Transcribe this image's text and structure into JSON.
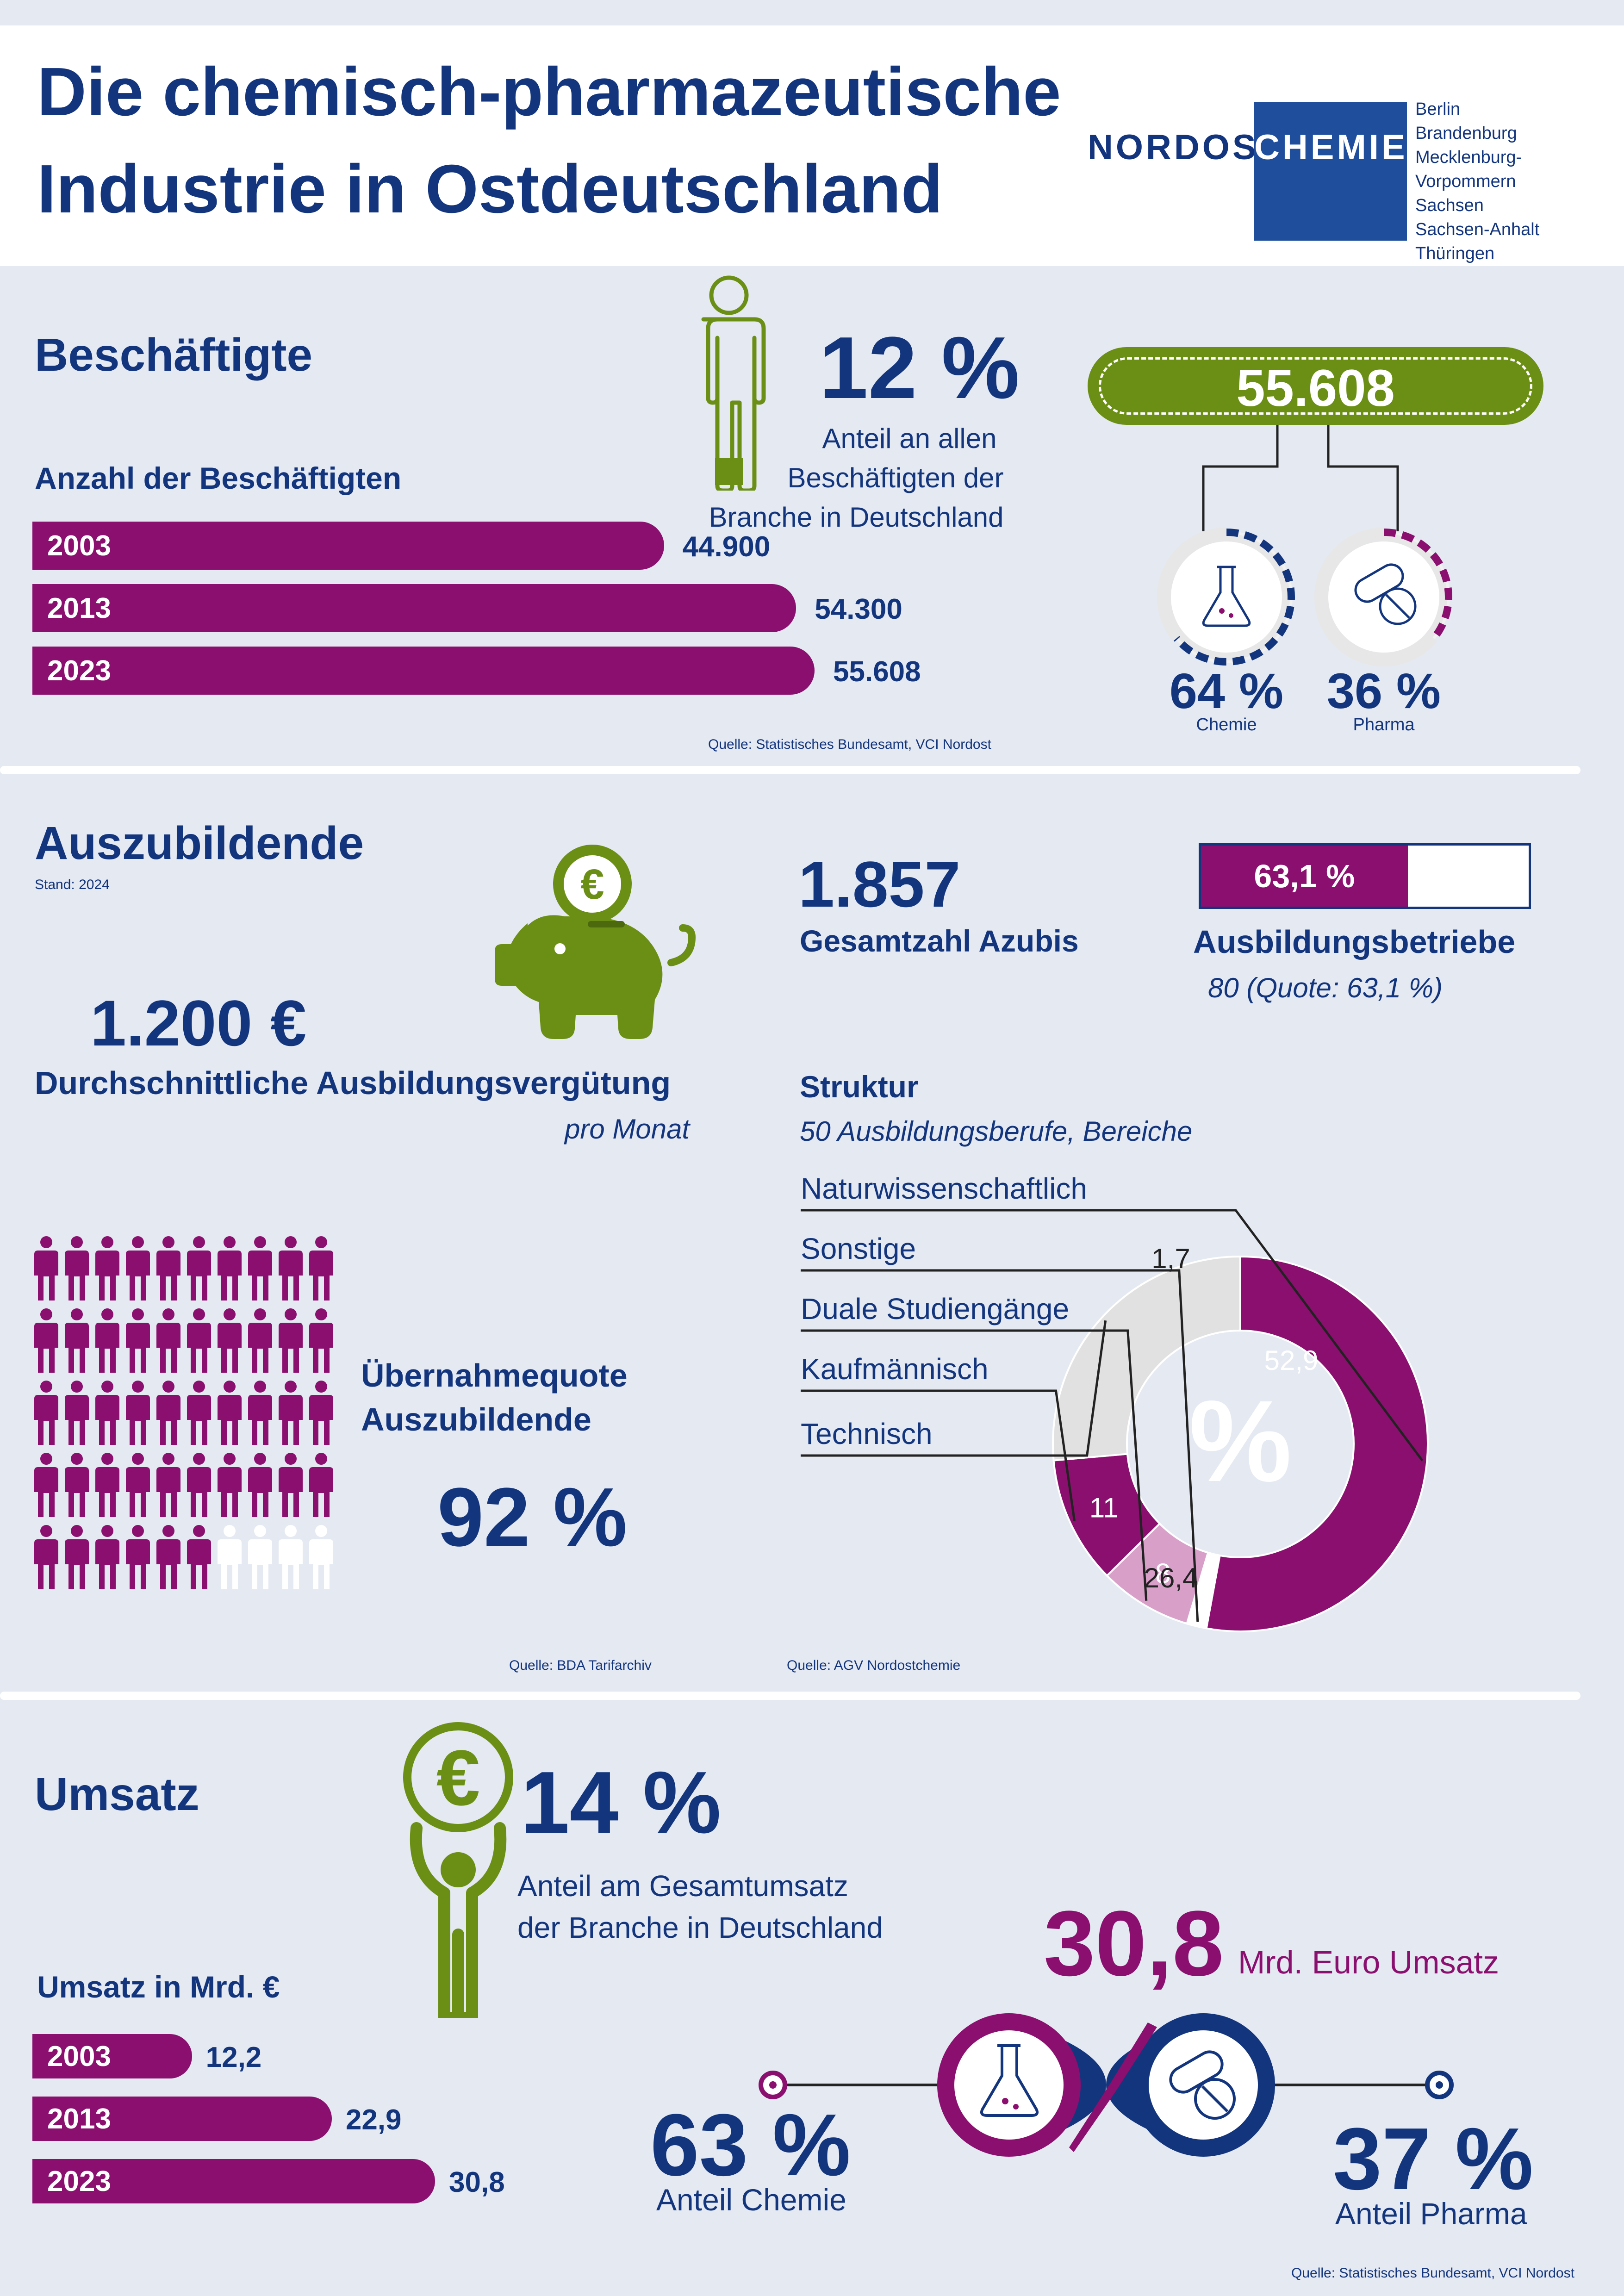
{
  "header": {
    "title_line1": "Die chemisch-pharmazeutische",
    "title_line2": "Industrie in Ostdeutschland",
    "logo_left": "NORDOST",
    "logo_right": "CHEMIE",
    "states": [
      "Berlin",
      "Brandenburg",
      "Mecklenburg-Vorpommern",
      "Sachsen",
      "Sachsen-Anhalt",
      "Thüringen"
    ]
  },
  "employees": {
    "heading": "Beschäftigte",
    "subheading": "Anzahl der Beschäftigten",
    "bars": [
      {
        "year": "2003",
        "label": "44.900",
        "value": 44900
      },
      {
        "year": "2013",
        "label": "54.300",
        "value": 54300
      },
      {
        "year": "2023",
        "label": "55.608",
        "value": 55608
      }
    ],
    "share_value": "12 %",
    "share_text1": "Anteil an allen",
    "share_text2": "Beschäftigten der",
    "share_text3": "Branche in Deutschland",
    "total": "55.608",
    "chemie_pct": "64 %",
    "chemie_label": "Chemie",
    "pharma_pct": "36 %",
    "pharma_label": "Pharma",
    "source": "Quelle: Statistisches Bundesamt, VCI  Nordost"
  },
  "trainees": {
    "heading": "Auszubildende",
    "stand": "Stand: 2024",
    "salary": "1.200 €",
    "salary_label": "Durchschnittliche Ausbildungsvergütung",
    "salary_sub": "pro Monat",
    "total": "1.857",
    "total_label": "Gesamtzahl Azubis",
    "companies_pct": "63,1 %",
    "companies_fill": 0.631,
    "companies_label": "Ausbildungsbetriebe",
    "companies_sub": "80 (Quote: 63,1 %)",
    "struktur": "Struktur",
    "struktur_sub": "50 Ausbildungsberufe, Bereiche",
    "takeover_label1": "Übernahmequote",
    "takeover_label2": "Auszubildende",
    "takeover_pct": "92 %",
    "people_total": 50,
    "people_filled": 46,
    "percent_symbol": "%",
    "source1": "Quelle: BDA Tarifarchiv",
    "source2": "Quelle: AGV Nordostchemie"
  },
  "revenue": {
    "heading": "Umsatz",
    "share_value": "14 %",
    "share_text1": "Anteil am Gesamtumsatz",
    "share_text2": "der Branche in Deutschland",
    "subheading": "Umsatz in Mrd. €",
    "bars": [
      {
        "year": "2003",
        "label": "12,2",
        "value": 12.2
      },
      {
        "year": "2013",
        "label": "22,9",
        "value": 22.9
      },
      {
        "year": "2023",
        "label": "30,8",
        "value": 30.8
      }
    ],
    "total": "30,8",
    "total_label": "Mrd. Euro Umsatz",
    "chemie_pct": "63 %",
    "chemie_label": "Anteil Chemie",
    "pharma_pct": "37 %",
    "pharma_label": "Anteil Pharma",
    "source": "Quelle: Statistisches Bundesamt, VCI Nordost"
  },
  "chart_data": [
    {
      "type": "bar",
      "title": "Anzahl der Beschäftigten",
      "categories": [
        "2003",
        "2013",
        "2023"
      ],
      "values": [
        44900,
        54300,
        55608
      ]
    },
    {
      "type": "pie",
      "title": "Struktur",
      "categories": [
        "Naturwissenschaftlich",
        "Sonstige",
        "Duale Studiengänge",
        "Kaufmännisch",
        "Technisch"
      ],
      "values": [
        52.9,
        1.7,
        8,
        11,
        26.4
      ],
      "value_labels": [
        "52,9",
        "1,7",
        "8",
        "11",
        "26,4"
      ],
      "colors": [
        "#8a0f6e",
        "#ffffff",
        "#d89fc9",
        "#8a0f6e",
        "#e1e1e1"
      ]
    },
    {
      "type": "bar",
      "title": "Umsatz in Mrd. €",
      "categories": [
        "2003",
        "2013",
        "2023"
      ],
      "values": [
        12.2,
        22.9,
        30.8
      ]
    }
  ],
  "colors": {
    "navy": "#13357d",
    "purple": "#8a0f6e",
    "green": "#6b8f15",
    "light_pink": "#d89fc9"
  }
}
